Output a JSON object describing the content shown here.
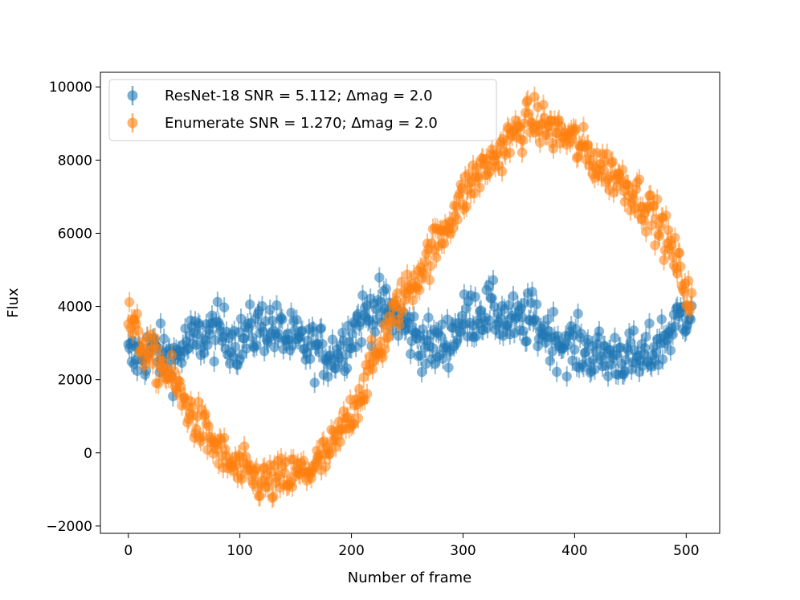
{
  "chart_data": {
    "type": "scatter",
    "xlabel": "Number of frame",
    "ylabel": "Flux",
    "xlim": [
      -25,
      530
    ],
    "ylim": [
      -2200,
      10400
    ],
    "x_ticks": [
      0,
      100,
      200,
      300,
      400,
      500
    ],
    "x_tick_labels": [
      "0",
      "100",
      "200",
      "300",
      "400",
      "500"
    ],
    "y_ticks": [
      -2000,
      0,
      2000,
      4000,
      6000,
      8000,
      10000
    ],
    "y_tick_labels": [
      "−2000",
      "0",
      "2000",
      "4000",
      "6000",
      "8000",
      "10000"
    ],
    "grid": false,
    "legend_position": "top-left",
    "error_bar": 280,
    "series": [
      {
        "name": "ResNet-18 SNR = 5.112; Δmag = 2.0",
        "color": "#1f77b4",
        "x": [
          0,
          10,
          20,
          30,
          40,
          50,
          60,
          70,
          80,
          90,
          100,
          110,
          120,
          130,
          140,
          150,
          160,
          170,
          180,
          190,
          200,
          210,
          220,
          230,
          240,
          250,
          260,
          270,
          280,
          290,
          300,
          310,
          320,
          330,
          340,
          350,
          360,
          370,
          380,
          390,
          400,
          410,
          420,
          430,
          440,
          450,
          460,
          470,
          480,
          490,
          500,
          505
        ],
        "y": [
          2600,
          2650,
          2800,
          2700,
          2500,
          2900,
          3100,
          3200,
          3300,
          3200,
          3000,
          3300,
          3500,
          3400,
          3200,
          3000,
          2900,
          2800,
          2700,
          2800,
          3300,
          3700,
          3900,
          3900,
          3700,
          3400,
          3100,
          2900,
          2900,
          3200,
          3600,
          3800,
          3900,
          3800,
          3600,
          3500,
          3700,
          3400,
          3200,
          3000,
          2900,
          2800,
          2700,
          2600,
          2700,
          2600,
          2500,
          2800,
          3100,
          3500,
          3900,
          4000
        ]
      },
      {
        "name": "Enumerate SNR = 1.270; Δmag = 2.0",
        "color": "#ff7f0e",
        "x": [
          0,
          10,
          20,
          30,
          40,
          50,
          60,
          70,
          80,
          90,
          100,
          110,
          120,
          130,
          140,
          150,
          160,
          170,
          180,
          190,
          200,
          210,
          220,
          230,
          240,
          250,
          260,
          270,
          280,
          290,
          300,
          310,
          320,
          330,
          340,
          350,
          360,
          370,
          380,
          390,
          400,
          410,
          420,
          430,
          440,
          450,
          460,
          470,
          480,
          490,
          500,
          505
        ],
        "y": [
          3700,
          3100,
          2600,
          2400,
          2000,
          1400,
          900,
          500,
          100,
          -300,
          -500,
          -600,
          -800,
          -800,
          -700,
          -600,
          -500,
          -300,
          0,
          500,
          1100,
          1800,
          2500,
          3200,
          3900,
          4400,
          4900,
          5400,
          5900,
          6500,
          7000,
          7500,
          7800,
          8100,
          8500,
          8800,
          9100,
          9000,
          8800,
          8700,
          8500,
          8200,
          7900,
          7700,
          7500,
          7200,
          6900,
          6500,
          6000,
          5300,
          4500,
          4000
        ]
      }
    ]
  }
}
